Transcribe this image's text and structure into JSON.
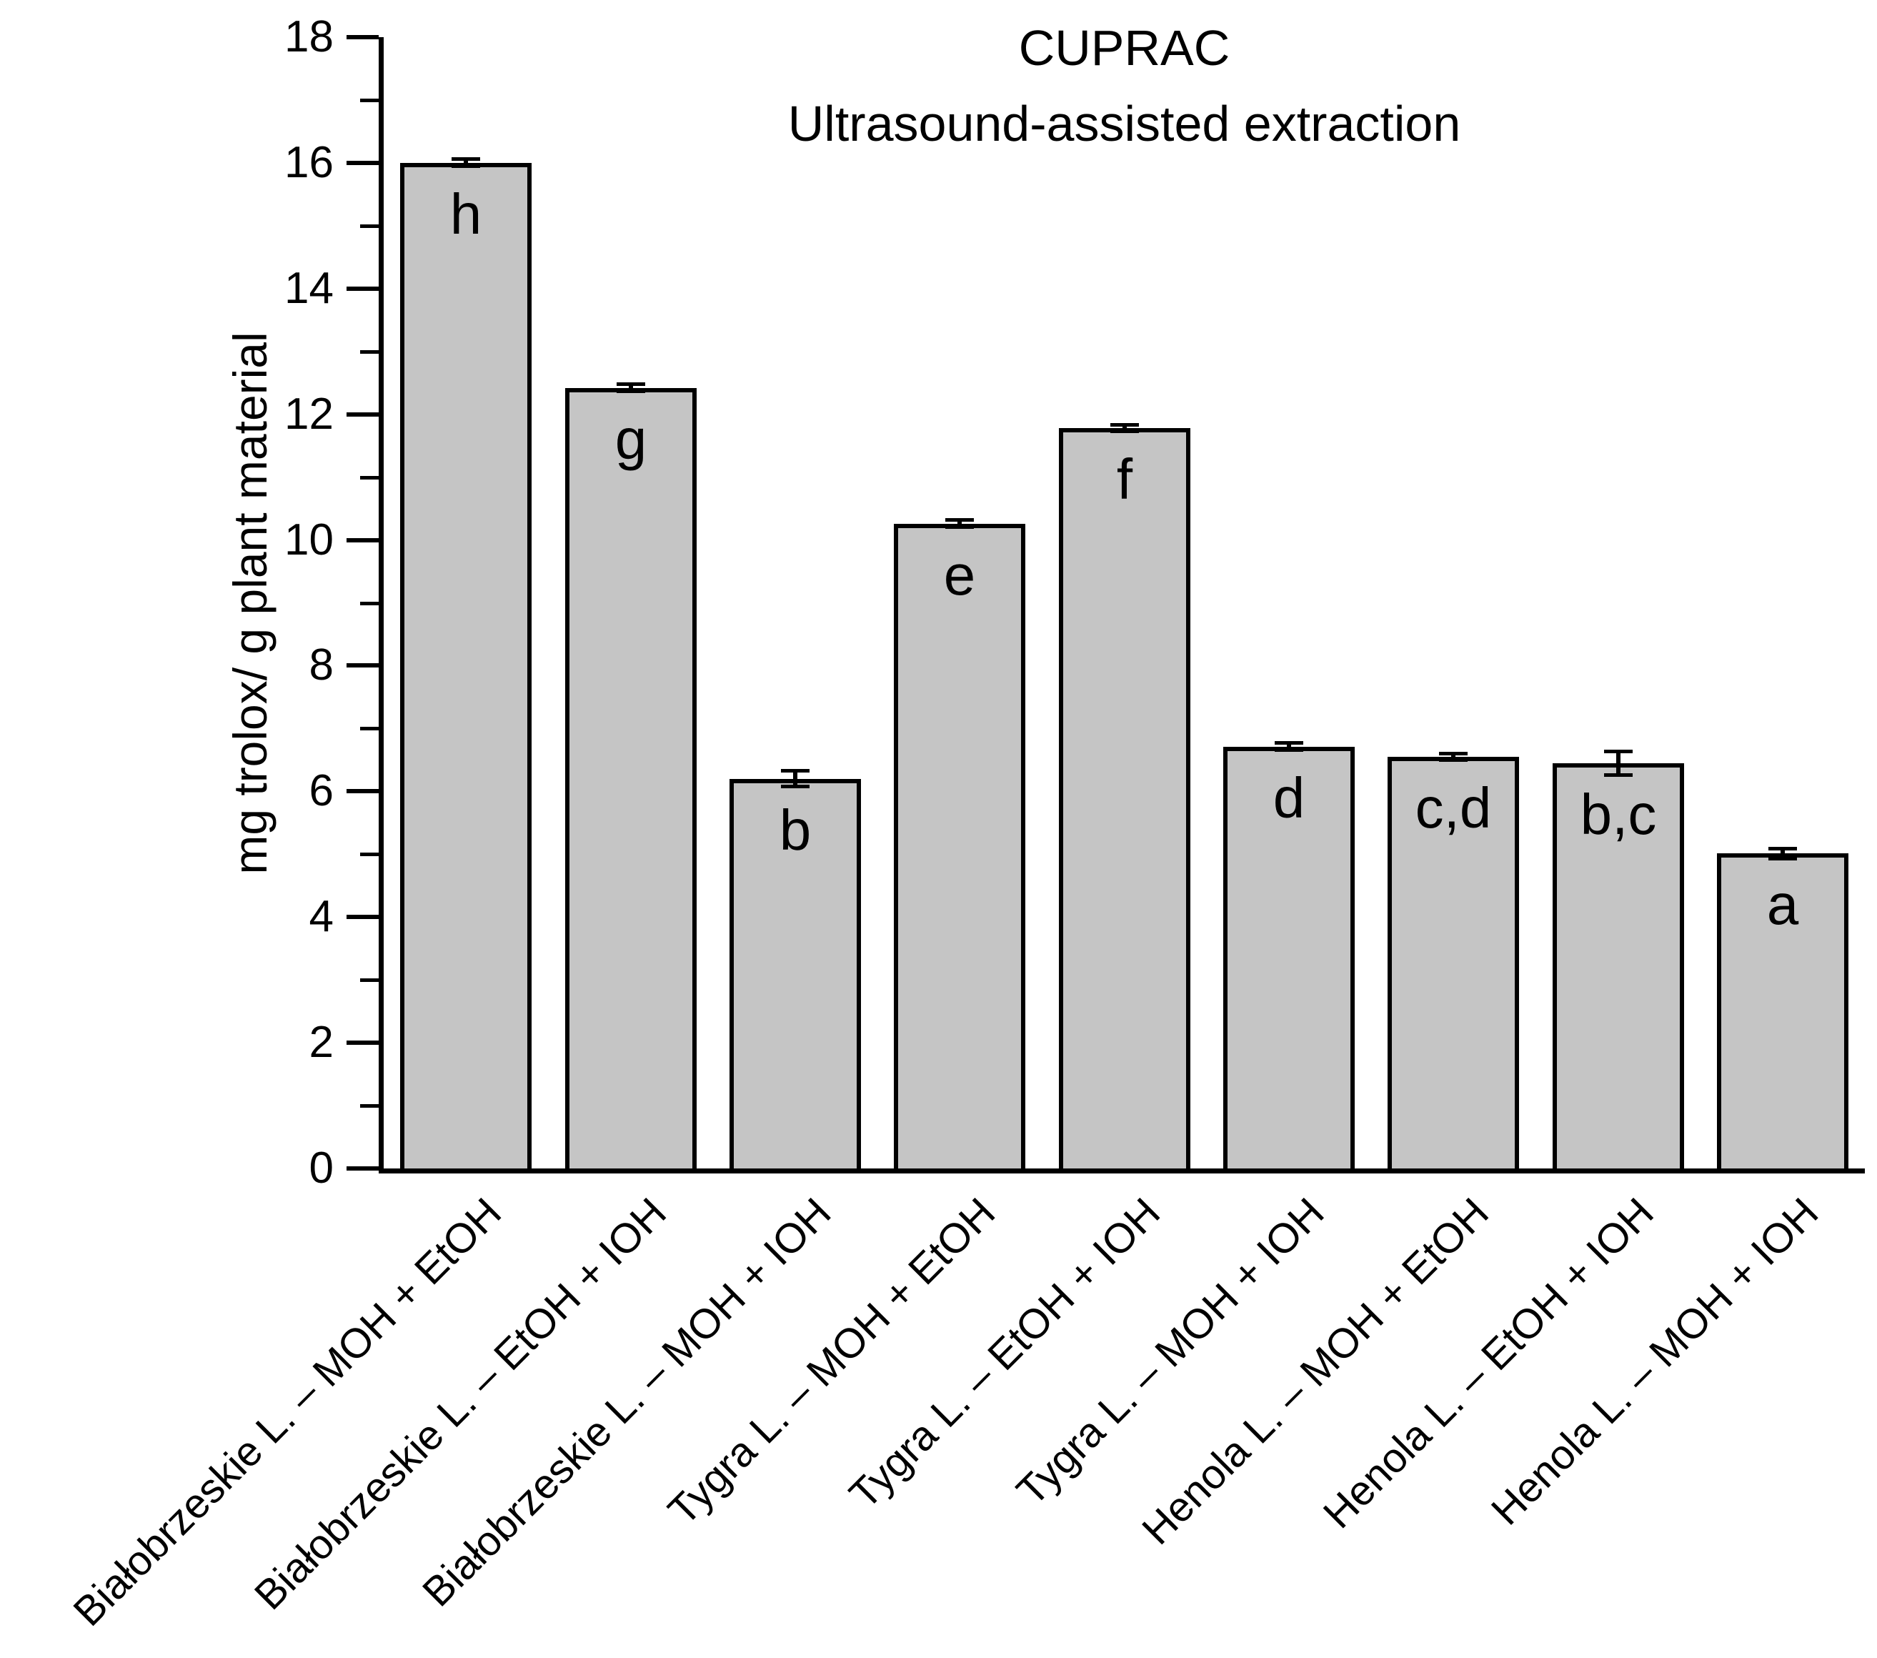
{
  "chart_data": {
    "type": "bar",
    "title": "CUPRAC",
    "subtitle": "Ultrasound-assisted extraction",
    "ylabel": "mg trolox/ g plant material",
    "xlabel": "",
    "ylim": [
      0,
      18
    ],
    "ytick_step": 2,
    "yticks": [
      0,
      2,
      4,
      6,
      8,
      10,
      12,
      14,
      16,
      18
    ],
    "grid": "off",
    "legend": "none",
    "bar_fill_color": "#c5c5c5",
    "bar_border_color": "#000000",
    "categories": [
      "Białobrzeskie L. – MOH + EtOH",
      "Białobrzeskie L. – EtOH + IOH",
      "Białobrzeskie L. – MOH + IOH",
      "Tygra L. – MOH + EtOH",
      "Tygra L. – EtOH + IOH",
      "Tygra L. – MOH + IOH",
      "Henola L. – MOH + EtOH",
      "Henola L. – EtOH + IOH",
      "Henola L. – MOH + IOH"
    ],
    "values": [
      16.0,
      12.42,
      6.2,
      10.26,
      11.78,
      6.71,
      6.55,
      6.45,
      5.01
    ],
    "errors": [
      0.05,
      0.05,
      0.12,
      0.05,
      0.05,
      0.05,
      0.05,
      0.18,
      0.07
    ],
    "significance_letters": [
      "h",
      "g",
      "b",
      "e",
      "f",
      "d",
      "c,d",
      "b,c",
      "a"
    ]
  }
}
